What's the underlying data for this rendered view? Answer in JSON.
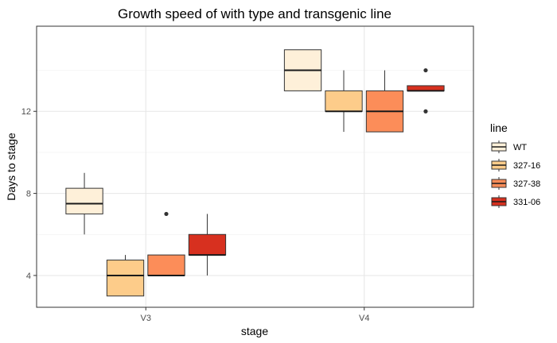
{
  "chart_data": {
    "type": "boxplot",
    "title": "Growth speed of with type and transgenic line",
    "xlabel": "stage",
    "ylabel": "Days to stage",
    "categories": [
      "V3",
      "V4"
    ],
    "ylim": [
      2.45,
      16.15
    ],
    "yticks": [
      4,
      8,
      12
    ],
    "grid": true,
    "legend": {
      "title": "line",
      "position": "right"
    },
    "series": [
      {
        "name": "WT",
        "color": "#FEF0D9",
        "boxes": [
          {
            "category": "V3",
            "whisker_low": 6,
            "q1": 7,
            "median": 7.5,
            "q3": 8.25,
            "whisker_high": 9,
            "outliers": []
          },
          {
            "category": "V4",
            "whisker_low": 13,
            "q1": 13,
            "median": 14,
            "q3": 15,
            "whisker_high": 15,
            "outliers": []
          }
        ]
      },
      {
        "name": "327-16",
        "color": "#FDCC8A",
        "boxes": [
          {
            "category": "V3",
            "whisker_low": 3,
            "q1": 3,
            "median": 4,
            "q3": 4.75,
            "whisker_high": 5,
            "outliers": []
          },
          {
            "category": "V4",
            "whisker_low": 11,
            "q1": 12,
            "median": 12,
            "q3": 13,
            "whisker_high": 14,
            "outliers": []
          }
        ]
      },
      {
        "name": "327-38",
        "color": "#FC8D59",
        "boxes": [
          {
            "category": "V3",
            "whisker_low": 4,
            "q1": 4,
            "median": 4,
            "q3": 5,
            "whisker_high": 5,
            "outliers": [
              7
            ]
          },
          {
            "category": "V4",
            "whisker_low": 11,
            "q1": 11,
            "median": 12,
            "q3": 13,
            "whisker_high": 14,
            "outliers": []
          }
        ]
      },
      {
        "name": "331-06",
        "color": "#D7301F",
        "boxes": [
          {
            "category": "V3",
            "whisker_low": 4,
            "q1": 5,
            "median": 5,
            "q3": 6,
            "whisker_high": 7,
            "outliers": []
          },
          {
            "category": "V4",
            "whisker_low": 13,
            "q1": 13,
            "median": 13,
            "q3": 13.25,
            "whisker_high": 13.25,
            "outliers": [
              14,
              12
            ]
          }
        ]
      }
    ]
  }
}
